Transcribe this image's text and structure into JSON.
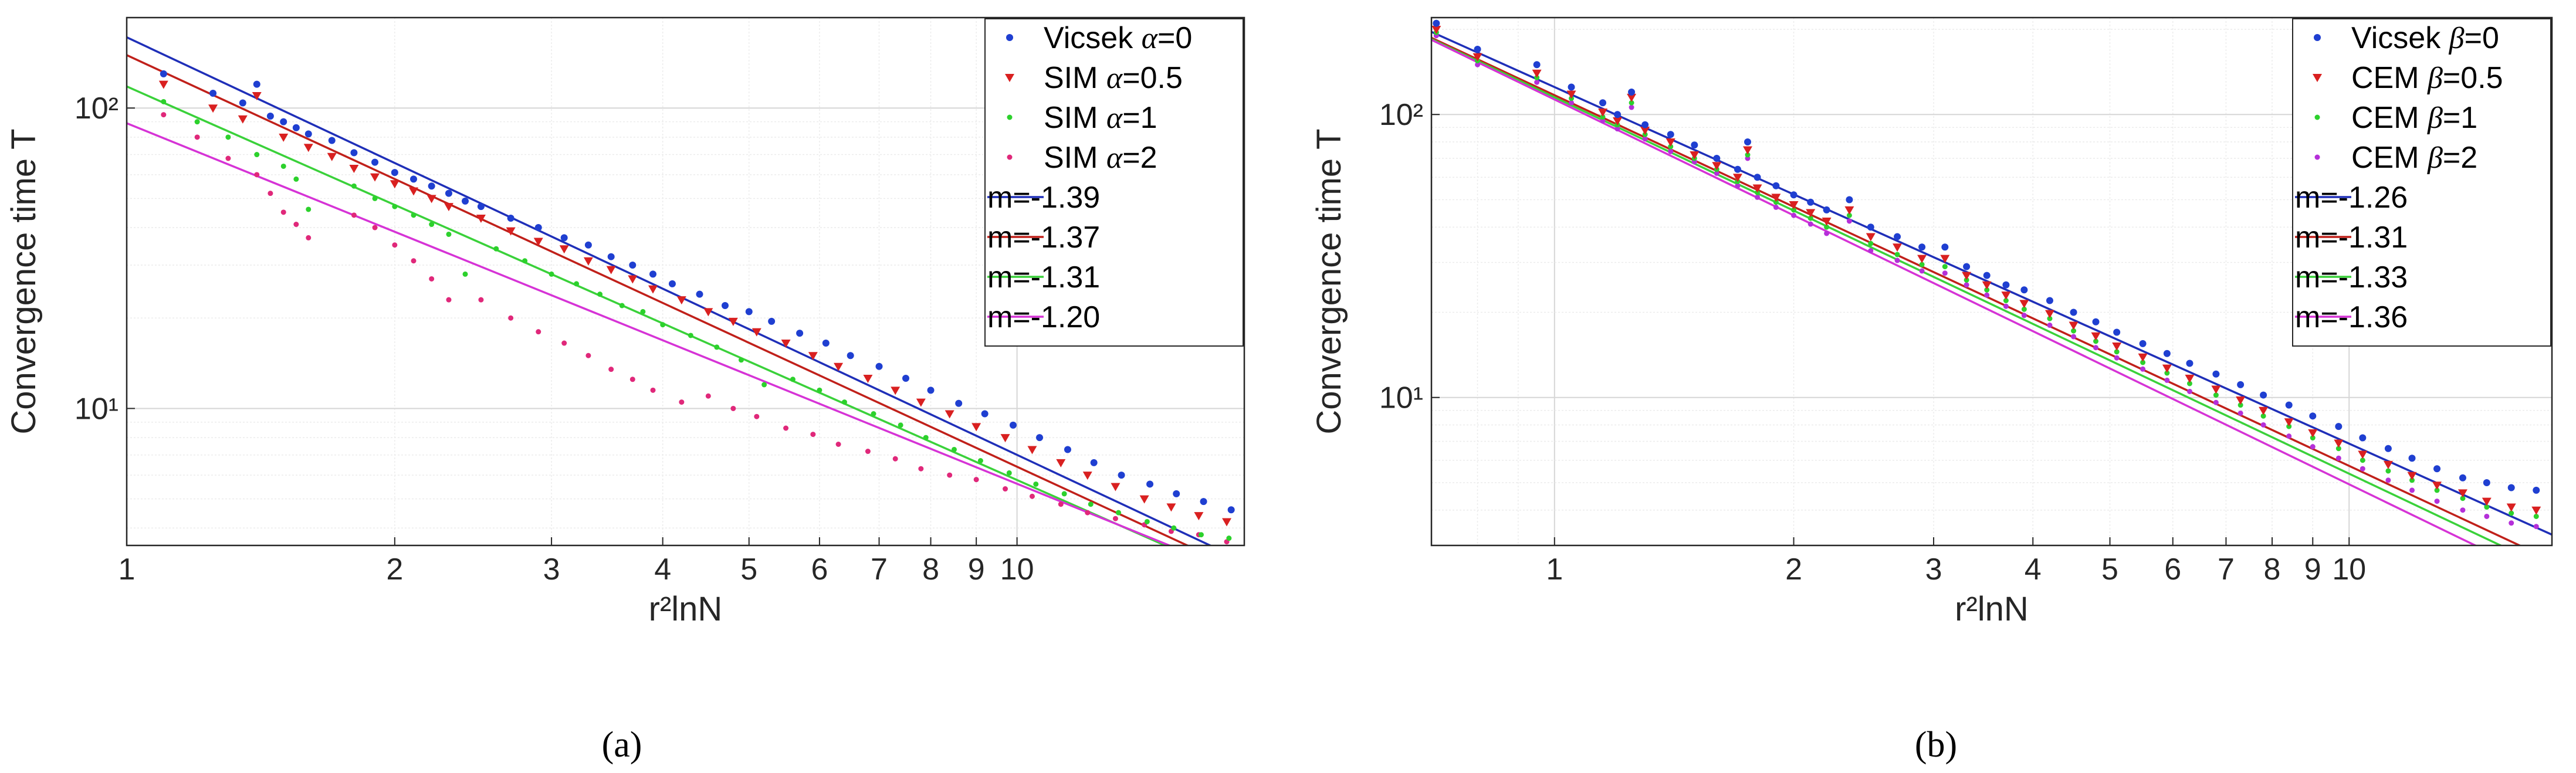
{
  "figure": {
    "background": "#ffffff"
  },
  "chart_data": [
    {
      "type": "scatter",
      "panel": "a",
      "caption": "(a)",
      "xlabel": "r²lnN",
      "ylabel": "Convergence time T",
      "xscale": "log",
      "yscale": "log",
      "xlim": [
        1,
        18
      ],
      "ylim": [
        3.5,
        200
      ],
      "grid": true,
      "legend_position": "top-right",
      "xtick_labels": [
        "1",
        "2",
        "3",
        "4",
        "5",
        "6",
        "7",
        "8",
        "9",
        "10"
      ],
      "ytick_labels": [
        "10¹",
        "10²"
      ],
      "series": [
        {
          "name": "Vicsek α=0",
          "label_prefix": "Vicsek ",
          "symbol": "α",
          "label_suffix": "=0",
          "marker": "circle",
          "color": "#1f3fd1",
          "x": [
            1.1,
            1.25,
            1.35,
            1.4,
            1.45,
            1.5,
            1.55,
            1.6,
            1.7,
            1.8,
            1.9,
            2.0,
            2.1,
            2.2,
            2.3,
            2.4,
            2.5,
            2.7,
            2.9,
            3.1,
            3.3,
            3.5,
            3.7,
            3.9,
            4.1,
            4.4,
            4.7,
            5.0,
            5.3,
            5.7,
            6.1,
            6.5,
            7.0,
            7.5,
            8.0,
            8.6,
            9.2,
            9.9,
            10.6,
            11.4,
            12.2,
            13.1,
            14.1,
            15.1,
            16.2,
            17.4
          ],
          "y": [
            130,
            112,
            104,
            120,
            94,
            90,
            86,
            82,
            78,
            71,
            66,
            61,
            58,
            55,
            52,
            49,
            47,
            43,
            40,
            37,
            35,
            32,
            30,
            28,
            26,
            24,
            22,
            21,
            19.5,
            17.8,
            16.5,
            15,
            13.8,
            12.6,
            11.5,
            10.4,
            9.6,
            8.8,
            8.0,
            7.3,
            6.6,
            6.0,
            5.6,
            5.2,
            4.9,
            4.6
          ]
        },
        {
          "name": "SIM α=0.5",
          "label_prefix": "SIM ",
          "symbol": "α",
          "label_suffix": "=0.5",
          "marker": "triangle-down",
          "color": "#d92020",
          "x": [
            1.1,
            1.25,
            1.35,
            1.4,
            1.5,
            1.6,
            1.7,
            1.8,
            1.9,
            2.0,
            2.1,
            2.2,
            2.3,
            2.5,
            2.7,
            2.9,
            3.1,
            3.3,
            3.5,
            3.7,
            3.9,
            4.2,
            4.5,
            4.8,
            5.1,
            5.5,
            5.9,
            6.3,
            6.8,
            7.3,
            7.8,
            8.4,
            9.0,
            9.7,
            10.4,
            11.2,
            12.0,
            12.9,
            13.9,
            14.9,
            16.0,
            17.2
          ],
          "y": [
            120,
            100,
            92,
            110,
            80,
            74,
            69,
            63,
            59,
            56,
            53,
            50,
            47,
            43,
            39,
            36,
            34,
            31,
            29,
            27,
            25,
            23,
            21,
            19.5,
            18,
            16.5,
            15,
            13.8,
            12.6,
            11.5,
            10.5,
            9.6,
            8.7,
            8.0,
            7.3,
            6.6,
            6.0,
            5.5,
            5.0,
            4.7,
            4.4,
            4.2
          ]
        },
        {
          "name": "SIM α=1",
          "label_prefix": "SIM ",
          "symbol": "α",
          "label_suffix": "=1",
          "marker": "dot",
          "color": "#2cd12c",
          "x": [
            1.1,
            1.2,
            1.3,
            1.4,
            1.5,
            1.55,
            1.6,
            1.8,
            1.9,
            2.0,
            2.1,
            2.2,
            2.3,
            2.4,
            2.6,
            2.8,
            3.0,
            3.2,
            3.4,
            3.6,
            3.8,
            4.0,
            4.3,
            4.6,
            4.9,
            5.2,
            5.6,
            6.0,
            6.4,
            6.9,
            7.4,
            7.9,
            8.5,
            9.1,
            9.8,
            10.5,
            11.3,
            12.1,
            13.0,
            14.0,
            15.0,
            16.1,
            17.3
          ],
          "y": [
            105,
            90,
            80,
            70,
            64,
            58,
            46,
            55,
            50,
            47,
            44,
            41,
            38,
            28,
            34,
            31,
            28,
            26,
            24,
            22,
            21,
            19,
            17.5,
            16,
            14.5,
            12,
            12.5,
            11.5,
            10.5,
            9.6,
            8.8,
            8.0,
            7.3,
            6.7,
            6.1,
            5.6,
            5.2,
            4.8,
            4.5,
            4.2,
            4.0,
            3.8,
            3.7
          ]
        },
        {
          "name": "SIM α=2",
          "label_prefix": "SIM ",
          "symbol": "α",
          "label_suffix": "=2",
          "marker": "dot",
          "color": "#e0287a",
          "x": [
            1.1,
            1.2,
            1.3,
            1.4,
            1.45,
            1.5,
            1.55,
            1.6,
            1.8,
            1.9,
            2.0,
            2.1,
            2.2,
            2.3,
            2.5,
            2.7,
            2.9,
            3.1,
            3.3,
            3.5,
            3.7,
            3.9,
            4.2,
            4.5,
            4.8,
            5.1,
            5.5,
            5.9,
            6.3,
            6.8,
            7.3,
            7.8,
            8.4,
            9.0,
            9.7,
            10.4,
            11.2,
            12.0,
            12.9,
            13.9,
            14.9,
            16.0,
            17.2
          ],
          "y": [
            95,
            80,
            68,
            60,
            52,
            45,
            41,
            37,
            44,
            40,
            35,
            31,
            27,
            23,
            23,
            20,
            18,
            16.5,
            15,
            13.5,
            12.5,
            11.5,
            10.5,
            11,
            10,
            9.4,
            8.6,
            8.2,
            7.6,
            7.2,
            6.8,
            6.3,
            6.0,
            5.8,
            5.4,
            5.1,
            4.8,
            4.5,
            4.3,
            4.1,
            3.9,
            3.8,
            3.6
          ]
        }
      ],
      "fits": [
        {
          "label": "m=-1.39",
          "slope": -1.39,
          "intercept": 172,
          "color": "#1f2fb8"
        },
        {
          "label": "m=-1.37",
          "slope": -1.37,
          "intercept": 150,
          "color": "#c0201a"
        },
        {
          "label": "m=-1.31",
          "slope": -1.31,
          "intercept": 118,
          "color": "#3ad13a"
        },
        {
          "label": "m=-1.20",
          "slope": -1.2,
          "intercept": 89,
          "color": "#d633d6"
        }
      ]
    },
    {
      "type": "scatter",
      "panel": "b",
      "caption": "(b)",
      "xlabel": "r²lnN",
      "ylabel": "Convergence time T",
      "xscale": "log",
      "yscale": "log",
      "xlim": [
        0.7,
        18
      ],
      "ylim": [
        3,
        220
      ],
      "grid": true,
      "legend_position": "top-right",
      "xtick_labels": [
        "1",
        "2",
        "3",
        "4",
        "5",
        "6",
        "7",
        "8",
        "9",
        "10"
      ],
      "ytick_labels": [
        "10¹",
        "10²"
      ],
      "series": [
        {
          "name": "Vicsek β=0",
          "label_prefix": "Vicsek ",
          "symbol": "β",
          "label_suffix": "=0",
          "marker": "circle",
          "color": "#1f3fd1",
          "x": [
            0.71,
            0.8,
            0.95,
            1.05,
            1.15,
            1.2,
            1.25,
            1.3,
            1.4,
            1.5,
            1.6,
            1.7,
            1.75,
            1.8,
            1.9,
            2.0,
            2.1,
            2.2,
            2.35,
            2.5,
            2.7,
            2.9,
            3.1,
            3.3,
            3.5,
            3.7,
            3.9,
            4.2,
            4.5,
            4.8,
            5.1,
            5.5,
            5.9,
            6.3,
            6.8,
            7.3,
            7.8,
            8.4,
            9.0,
            9.7,
            10.4,
            11.2,
            12.0,
            12.9,
            13.9,
            14.9,
            16.0,
            17.2
          ],
          "y": [
            210,
            170,
            150,
            125,
            110,
            100,
            120,
            92,
            85,
            78,
            70,
            64,
            80,
            60,
            56,
            52,
            49,
            46,
            50,
            40,
            37,
            34,
            34,
            29,
            27,
            25,
            24,
            22,
            20,
            18.5,
            17,
            15.5,
            14.3,
            13.2,
            12.1,
            11.1,
            10.2,
            9.4,
            8.6,
            7.9,
            7.2,
            6.6,
            6.1,
            5.6,
            5.2,
            5.0,
            4.8,
            4.7
          ]
        },
        {
          "name": "CEM β=0.5",
          "label_prefix": "CEM ",
          "symbol": "β",
          "label_suffix": "=0.5",
          "marker": "triangle-down",
          "color": "#d92020",
          "x": [
            0.71,
            0.8,
            0.95,
            1.05,
            1.15,
            1.2,
            1.25,
            1.3,
            1.4,
            1.5,
            1.6,
            1.7,
            1.75,
            1.8,
            1.9,
            2.0,
            2.1,
            2.2,
            2.35,
            2.5,
            2.7,
            2.9,
            3.1,
            3.3,
            3.5,
            3.7,
            3.9,
            4.2,
            4.5,
            4.8,
            5.1,
            5.5,
            5.9,
            6.3,
            6.8,
            7.3,
            7.8,
            8.4,
            9.0,
            9.7,
            10.4,
            11.2,
            12.0,
            12.9,
            13.9,
            14.9,
            16.0,
            17.2
          ],
          "y": [
            200,
            160,
            140,
            118,
            102,
            95,
            115,
            88,
            80,
            72,
            66,
            60,
            75,
            55,
            51,
            48,
            45,
            42,
            46,
            37,
            34,
            31,
            31,
            27,
            25,
            23,
            21.5,
            19.8,
            18,
            16.5,
            15.2,
            13.9,
            12.7,
            11.7,
            10.7,
            9.8,
            9.0,
            8.2,
            7.5,
            6.9,
            6.3,
            5.8,
            5.3,
            4.9,
            4.6,
            4.3,
            4.1,
            4.0
          ]
        },
        {
          "name": "CEM β=1",
          "label_prefix": "CEM ",
          "symbol": "β",
          "label_suffix": "=1",
          "marker": "dot",
          "color": "#2cd12c",
          "x": [
            0.71,
            0.8,
            0.95,
            1.05,
            1.15,
            1.2,
            1.25,
            1.3,
            1.4,
            1.5,
            1.6,
            1.7,
            1.75,
            1.8,
            1.9,
            2.0,
            2.1,
            2.2,
            2.35,
            2.5,
            2.7,
            2.9,
            3.1,
            3.3,
            3.5,
            3.7,
            3.9,
            4.2,
            4.5,
            4.8,
            5.1,
            5.5,
            5.9,
            6.3,
            6.8,
            7.3,
            7.8,
            8.4,
            9.0,
            9.7,
            10.4,
            11.2,
            12.0,
            12.9,
            13.9,
            14.9,
            16.0,
            17.2
          ],
          "y": [
            195,
            155,
            135,
            114,
            98,
            92,
            110,
            85,
            77,
            70,
            64,
            58,
            72,
            53,
            49,
            46,
            43,
            40,
            44,
            35,
            32,
            29.5,
            29,
            26,
            24,
            22,
            20.5,
            19,
            17.2,
            15.8,
            14.5,
            13.3,
            12.2,
            11.2,
            10.2,
            9.4,
            8.6,
            7.9,
            7.2,
            6.6,
            6.0,
            5.5,
            5.1,
            4.7,
            4.4,
            4.1,
            3.9,
            3.8
          ]
        },
        {
          "name": "CEM β=2",
          "label_prefix": "CEM ",
          "symbol": "β",
          "label_suffix": "=2",
          "marker": "dot",
          "color": "#b52fd9",
          "x": [
            0.71,
            0.8,
            0.95,
            1.05,
            1.15,
            1.2,
            1.25,
            1.3,
            1.4,
            1.5,
            1.6,
            1.7,
            1.75,
            1.8,
            1.9,
            2.0,
            2.1,
            2.2,
            2.35,
            2.5,
            2.7,
            2.9,
            3.1,
            3.3,
            3.5,
            3.7,
            3.9,
            4.2,
            4.5,
            4.8,
            5.1,
            5.5,
            5.9,
            6.3,
            6.8,
            7.3,
            7.8,
            8.4,
            9.0,
            9.7,
            10.4,
            11.2,
            12.0,
            12.9,
            13.9,
            14.9,
            16.0,
            17.2
          ],
          "y": [
            190,
            150,
            130,
            110,
            95,
            89,
            106,
            82,
            74,
            68,
            62,
            56,
            70,
            51,
            47,
            44,
            41,
            38,
            42,
            33,
            30.5,
            28,
            27.5,
            25,
            23,
            21,
            19.5,
            18,
            16.4,
            15,
            13.8,
            12.6,
            11.5,
            10.5,
            9.6,
            8.8,
            8.0,
            7.3,
            6.7,
            6.1,
            5.6,
            5.1,
            4.7,
            4.3,
            4.0,
            3.8,
            3.6,
            3.5
          ]
        }
      ],
      "fits": [
        {
          "label": "m=-1.26",
          "slope": -1.26,
          "intercept": 125,
          "color": "#1f2fb8"
        },
        {
          "label": "m=-1.31",
          "slope": -1.31,
          "intercept": 117,
          "color": "#c0201a"
        },
        {
          "label": "m=-1.33",
          "slope": -1.33,
          "intercept": 115,
          "color": "#3ad13a"
        },
        {
          "label": "m=-1.36",
          "slope": -1.36,
          "intercept": 113,
          "color": "#d633d6"
        }
      ]
    }
  ]
}
